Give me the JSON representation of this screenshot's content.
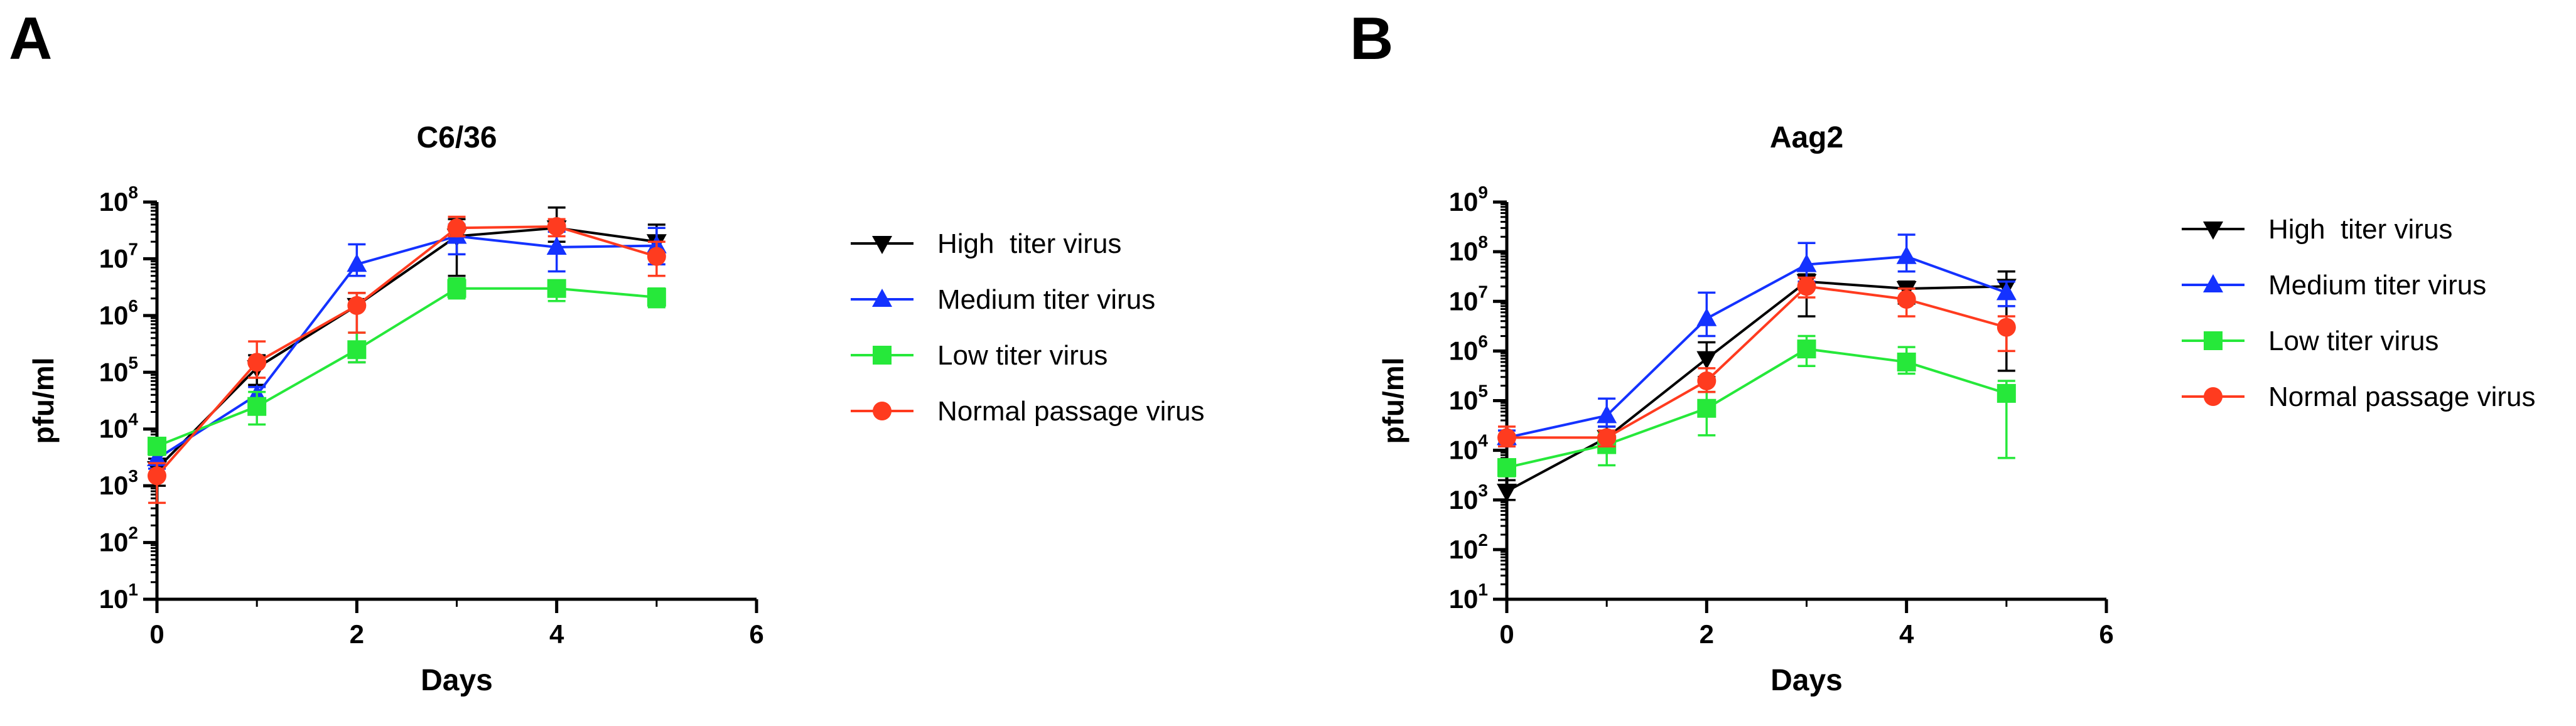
{
  "panels": [
    {
      "letter": "A",
      "chart_data": {
        "type": "line",
        "title": "C6/36",
        "xlabel": "Days",
        "ylabel": "pfu/ml",
        "xlim": [
          0,
          6
        ],
        "xticks": [
          "0",
          "2",
          "4",
          "6"
        ],
        "ylog10_range": [
          1,
          8
        ],
        "yticks": [
          {
            "base": "10",
            "exp": "1"
          },
          {
            "base": "10",
            "exp": "2"
          },
          {
            "base": "10",
            "exp": "3"
          },
          {
            "base": "10",
            "exp": "4"
          },
          {
            "base": "10",
            "exp": "5"
          },
          {
            "base": "10",
            "exp": "6"
          },
          {
            "base": "10",
            "exp": "7"
          },
          {
            "base": "10",
            "exp": "8"
          }
        ],
        "grid": false,
        "legend_position": "right",
        "series": [
          {
            "name": "High  titer virus",
            "color": "#000000",
            "marker": "triangle-down",
            "x": [
              0,
              1,
              2,
              3,
              4,
              5
            ],
            "y": [
              2000,
              120000,
              1500000,
              25000000,
              35000000,
              20000000
            ],
            "err_up": [
              3000,
              200000,
              2500000,
              50000000,
              80000000,
              40000000
            ],
            "err_down": [
              1000,
              60000,
              150000,
              5000000,
              20000000,
              10000000
            ]
          },
          {
            "name": "Medium titer virus",
            "color": "#1432ff",
            "marker": "triangle-up",
            "x": [
              0,
              1,
              2,
              3,
              4,
              5
            ],
            "y": [
              3000,
              40000,
              8000000,
              25000000,
              16000000,
              17000000
            ],
            "err_up": [
              4500,
              55000,
              18000000,
              40000000,
              30000000,
              35000000
            ],
            "err_down": [
              2000,
              25000,
              5000000,
              12000000,
              6000000,
              8000000
            ]
          },
          {
            "name": "Low titer virus",
            "color": "#26e83a",
            "marker": "square",
            "x": [
              0,
              1,
              2,
              3,
              4,
              5
            ],
            "y": [
              5000,
              25000,
              250000,
              3000000,
              3000000,
              2100000
            ],
            "err_up": [
              7000,
              45000,
              500000,
              4500000,
              4000000,
              3000000
            ],
            "err_down": [
              3500,
              12000,
              150000,
              2000000,
              1800000,
              1400000
            ]
          },
          {
            "name": "Normal passage virus",
            "color": "#ff3b1f",
            "marker": "circle",
            "x": [
              0,
              1,
              2,
              3,
              4,
              5
            ],
            "y": [
              1500,
              150000,
              1500000,
              35000000,
              37000000,
              11000000
            ],
            "err_up": [
              2500,
              350000,
              2500000,
              55000000,
              50000000,
              20000000
            ],
            "err_down": [
              500,
              80000,
              500000,
              25000000,
              25000000,
              5000000
            ]
          }
        ]
      }
    },
    {
      "letter": "B",
      "chart_data": {
        "type": "line",
        "title": "Aag2",
        "xlabel": "Days",
        "ylabel": "pfu/ml",
        "xlim": [
          0,
          6
        ],
        "xticks": [
          "0",
          "2",
          "4",
          "6"
        ],
        "ylog10_range": [
          1,
          9
        ],
        "yticks": [
          {
            "base": "10",
            "exp": "1"
          },
          {
            "base": "10",
            "exp": "2"
          },
          {
            "base": "10",
            "exp": "3"
          },
          {
            "base": "10",
            "exp": "4"
          },
          {
            "base": "10",
            "exp": "5"
          },
          {
            "base": "10",
            "exp": "6"
          },
          {
            "base": "10",
            "exp": "7"
          },
          {
            "base": "10",
            "exp": "8"
          },
          {
            "base": "10",
            "exp": "9"
          }
        ],
        "grid": false,
        "legend_position": "right",
        "series": [
          {
            "name": "High  titer virus",
            "color": "#000000",
            "marker": "triangle-down",
            "x": [
              0,
              1,
              2,
              3,
              4,
              5
            ],
            "y": [
              1500,
              18000,
              700000,
              25000000,
              18000000,
              20000000
            ],
            "err_up": [
              2500,
              30000,
              1500000,
              35000000,
              25000000,
              40000000
            ],
            "err_down": [
              1000,
              10000,
              300000,
              5000000,
              9000000,
              400000
            ]
          },
          {
            "name": "Medium titer virus",
            "color": "#1432ff",
            "marker": "triangle-up",
            "x": [
              0,
              1,
              2,
              3,
              4,
              5
            ],
            "y": [
              18000,
              50000,
              4500000,
              55000000,
              80000000,
              15000000
            ],
            "err_up": [
              25000,
              110000,
              15000000,
              150000000,
              220000000,
              25000000
            ],
            "err_down": [
              12000,
              30000,
              2000000,
              25000000,
              40000000,
              8000000
            ]
          },
          {
            "name": "Low titer virus",
            "color": "#26e83a",
            "marker": "square",
            "x": [
              0,
              1,
              2,
              3,
              4,
              5
            ],
            "y": [
              4500,
              13000,
              70000,
              1100000,
              600000,
              140000
            ],
            "err_up": [
              6000,
              22000,
              150000,
              2000000,
              1200000,
              250000
            ],
            "err_down": [
              3000,
              5000,
              20000,
              500000,
              350000,
              7000
            ]
          },
          {
            "name": "Normal passage virus",
            "color": "#ff3b1f",
            "marker": "circle",
            "x": [
              0,
              1,
              2,
              3,
              4,
              5
            ],
            "y": [
              18000,
              18000,
              250000,
              20000000,
              11000000,
              3000000
            ],
            "err_up": [
              30000,
              25000,
              450000,
              30000000,
              18000000,
              5000000
            ],
            "err_down": [
              12000,
              12000,
              150000,
              12000000,
              5000000,
              1000000
            ]
          }
        ]
      }
    }
  ]
}
